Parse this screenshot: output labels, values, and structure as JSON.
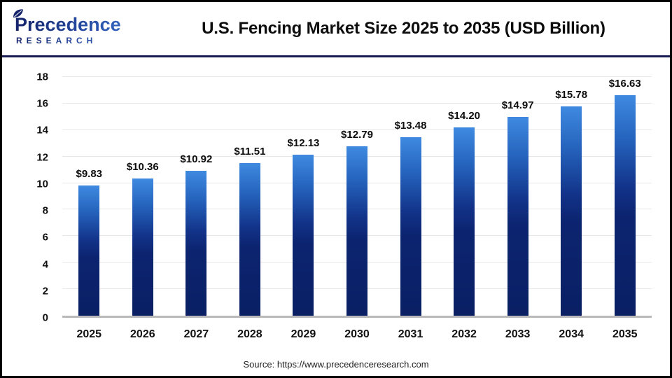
{
  "header": {
    "title": "U.S. Fencing Market Size 2025 to 2035 (USD Billion)",
    "logo": {
      "name": "Precedence",
      "subname": "RESEARCH"
    }
  },
  "source": {
    "text": "Source: https://www.precedenceresearch.com"
  },
  "colors": {
    "bar_gradient_top": "#3f8ae0",
    "bar_gradient_bottom": "#0a1f64",
    "gridline": "#e7e7e7",
    "baseline": "#b9b9b9",
    "header_divider": "#171b52",
    "logo_dark": "#15246b",
    "logo_light": "#3f7fd9",
    "outer_border": "#000000"
  },
  "chart_data": {
    "type": "bar",
    "title": "U.S. Fencing Market Size 2025 to 2035 (USD Billion)",
    "categories": [
      "2025",
      "2026",
      "2027",
      "2028",
      "2029",
      "2030",
      "2031",
      "2032",
      "2033",
      "2034",
      "2035"
    ],
    "values": [
      9.83,
      10.36,
      10.92,
      11.51,
      12.13,
      12.79,
      13.48,
      14.2,
      14.97,
      15.78,
      16.63
    ],
    "labels": [
      "$9.83",
      "$10.36",
      "$10.92",
      "$11.51",
      "$12.13",
      "$12.79",
      "$13.48",
      "$14.20",
      "$14.97",
      "$15.78",
      "$16.63"
    ],
    "xlabel": "",
    "ylabel": "",
    "ylim": [
      0,
      18
    ],
    "yticks": [
      0,
      2,
      4,
      6,
      8,
      10,
      12,
      14,
      16,
      18
    ],
    "grid": true,
    "legend": false
  }
}
